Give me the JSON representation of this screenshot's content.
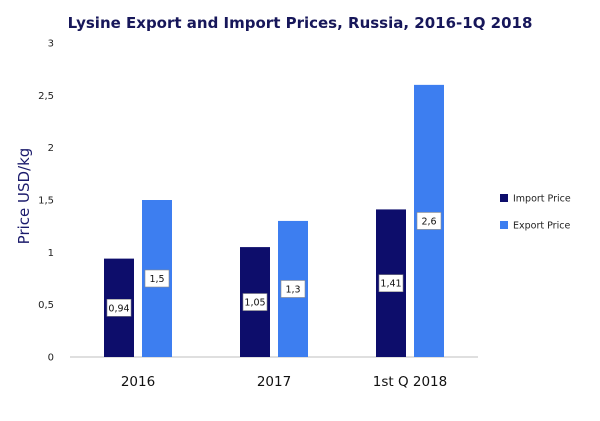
{
  "chart_data": {
    "type": "bar",
    "title": "Lysine Export and Import Prices, Russia, 2016-1Q 2018",
    "xlabel": "",
    "ylabel": "Price USD/kg",
    "categories": [
      "2016",
      "2017",
      "1st Q 2018"
    ],
    "ylim": [
      0,
      3
    ],
    "yticks": [
      0,
      0.5,
      1,
      1.5,
      2,
      2.5,
      3
    ],
    "ytick_labels": [
      "0",
      "0,5",
      "1",
      "1,5",
      "2",
      "2,5",
      "3"
    ],
    "series": [
      {
        "name": "Import Price",
        "values": [
          0.94,
          1.05,
          1.41
        ],
        "labels": [
          "0,94",
          "1,05",
          "1,41"
        ],
        "color": "#0d0d6b"
      },
      {
        "name": "Export Price",
        "values": [
          1.5,
          1.3,
          2.6
        ],
        "labels": [
          "1,5",
          "1,3",
          "2,6"
        ],
        "color": "#3d7ef0"
      }
    ],
    "grid": false,
    "legend_position": "right"
  }
}
